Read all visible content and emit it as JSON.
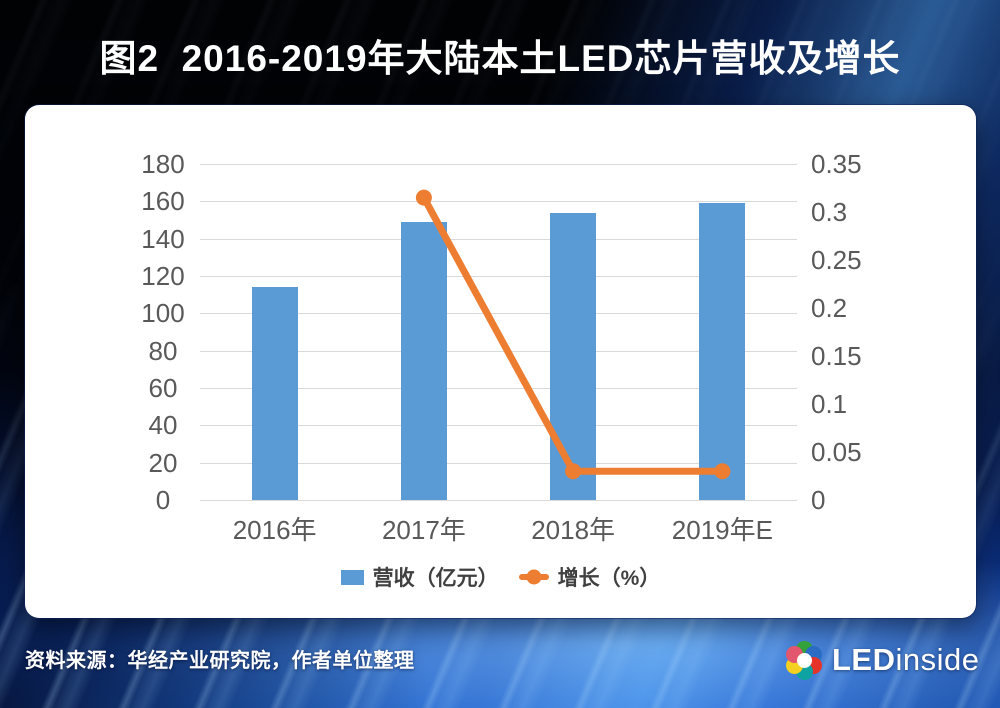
{
  "header": {
    "title": "图2  2016-2019年大陆本土LED芯片营收及增长"
  },
  "footer": {
    "source": "资料来源：华经产业研究院，作者单位整理",
    "logo": {
      "bold": "LED",
      "light": "inside"
    }
  },
  "chart_data": {
    "type": "bar+line combo",
    "title": "图2 2016-2019年大陆本土LED芯片营收及增长",
    "categories": [
      "2016年",
      "2017年",
      "2018年",
      "2019年E"
    ],
    "series": [
      {
        "name": "营收（亿元）",
        "type": "bar",
        "axis": "left",
        "color": "#5B9BD5",
        "values": [
          114,
          149,
          154,
          159
        ]
      },
      {
        "name": "增长（%）",
        "type": "line",
        "axis": "right",
        "color": "#ED7D31",
        "values": [
          null,
          0.315,
          0.03,
          0.03
        ]
      }
    ],
    "left_axis": {
      "min": 0,
      "max": 180,
      "ticks": [
        "0",
        "20",
        "40",
        "60",
        "80",
        "100",
        "120",
        "140",
        "160",
        "180"
      ]
    },
    "right_axis": {
      "min": 0,
      "max": 0.35,
      "ticks": [
        "0",
        "0.05",
        "0.1",
        "0.15",
        "0.2",
        "0.25",
        "0.3",
        "0.35"
      ]
    },
    "grid": true,
    "legend_position": "bottom",
    "gridline_color": "#d9d9d9",
    "tick_color": "#595959"
  },
  "logo_icon": {
    "name": "ledinside-flower",
    "petal_colors": [
      "#34a23a",
      "#2a6bc4",
      "#e6332a",
      "#0da3a0",
      "#f4d021",
      "#e2566e"
    ]
  }
}
